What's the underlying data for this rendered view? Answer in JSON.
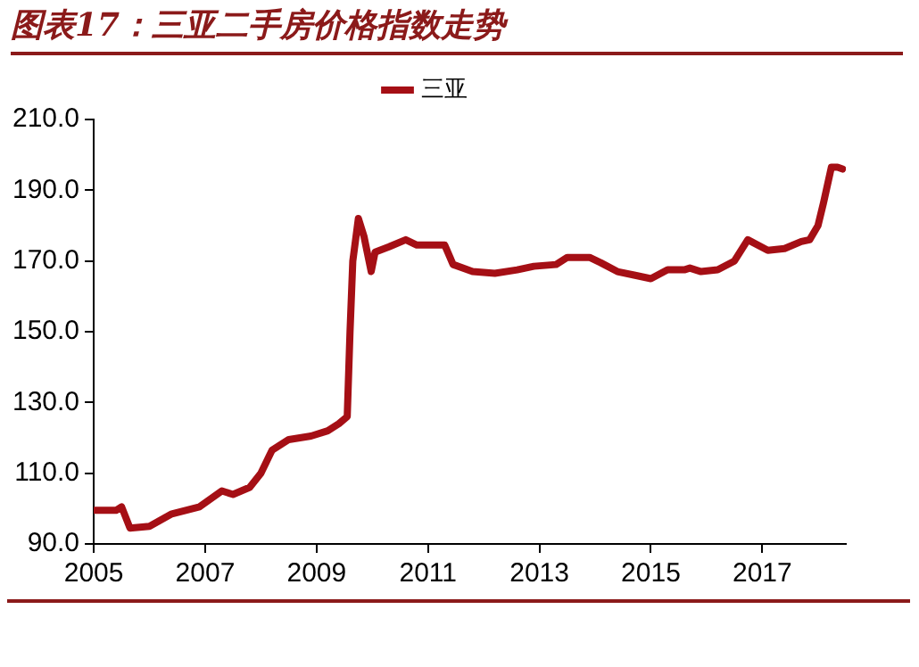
{
  "chart_data": {
    "type": "line",
    "title": "图表17：三亚二手房价格指数走势",
    "x": [
      2005.0,
      2005.4,
      2005.5,
      2005.65,
      2006.0,
      2006.4,
      2006.9,
      2007.3,
      2007.5,
      2007.8,
      2008.0,
      2008.2,
      2008.5,
      2008.9,
      2009.2,
      2009.4,
      2009.55,
      2009.6,
      2009.65,
      2009.75,
      2009.85,
      2009.98,
      2010.05,
      2010.3,
      2010.6,
      2010.8,
      2011.0,
      2011.3,
      2011.45,
      2011.8,
      2012.2,
      2012.6,
      2012.9,
      2013.3,
      2013.5,
      2013.9,
      2014.1,
      2014.4,
      2014.7,
      2015.0,
      2015.3,
      2015.6,
      2015.7,
      2015.9,
      2016.2,
      2016.5,
      2016.74,
      2017.1,
      2017.4,
      2017.7,
      2017.85,
      2018.0,
      2018.1,
      2018.24,
      2018.35,
      2018.44
    ],
    "series": [
      {
        "name": "三亚",
        "color": "#a50f15",
        "values": [
          99.5,
          99.5,
          100.5,
          94.5,
          95,
          98.5,
          100.5,
          105,
          104,
          106,
          110,
          116.5,
          119.5,
          120.5,
          122,
          124,
          126,
          150,
          170,
          182,
          177,
          167,
          172.5,
          174,
          176,
          174.5,
          174.5,
          174.5,
          169,
          167,
          166.5,
          167.5,
          168.5,
          169,
          171,
          171,
          169.5,
          167,
          166,
          165,
          167.5,
          167.5,
          168,
          167,
          167.5,
          170,
          176,
          173,
          173.5,
          175.5,
          176,
          180,
          186.5,
          196.5,
          196.5,
          196
        ]
      }
    ],
    "xlim": [
      2005,
      2018.5
    ],
    "xticks": [
      2005,
      2007,
      2009,
      2011,
      2013,
      2015,
      2017
    ],
    "ylim": [
      90,
      210
    ],
    "yticks": [
      {
        "value": 90,
        "label": "90.0"
      },
      {
        "value": 110,
        "label": "110.0"
      },
      {
        "value": 130,
        "label": "130.0"
      },
      {
        "value": 150,
        "label": "150.0"
      },
      {
        "value": 170,
        "label": "170.0"
      },
      {
        "value": 190,
        "label": "190.0"
      },
      {
        "value": 210,
        "label": "210.0"
      }
    ],
    "grid": false,
    "legend": "top",
    "marker": "none",
    "line_style": "solid"
  }
}
